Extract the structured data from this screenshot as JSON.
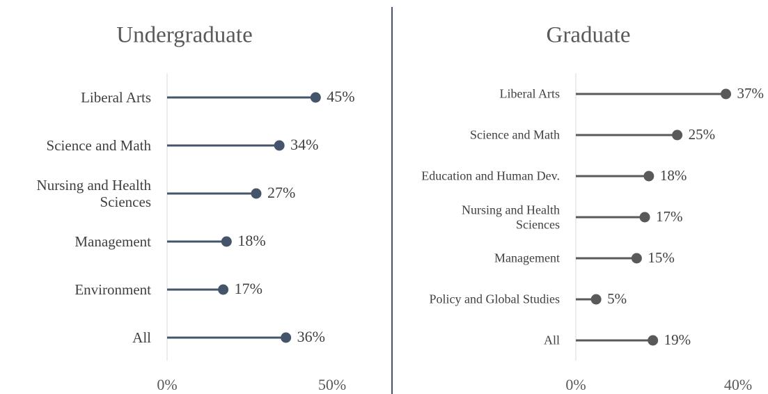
{
  "chart_data": [
    {
      "type": "lollipop",
      "title": "Undergraduate",
      "categories": [
        "Liberal Arts",
        "Science and Math",
        "Nursing and Health Sciences",
        "Management",
        "Environment",
        "All"
      ],
      "values": [
        45,
        34,
        27,
        18,
        17,
        36
      ],
      "value_labels": [
        "45%",
        "34%",
        "27%",
        "18%",
        "17%",
        "36%"
      ],
      "color": "#44546a",
      "xlim": [
        0,
        50
      ],
      "xticks": [
        {
          "value": 0,
          "label": "0%"
        },
        {
          "value": 50,
          "label": "50%"
        }
      ]
    },
    {
      "type": "lollipop",
      "title": "Graduate",
      "categories": [
        "Liberal Arts",
        "Science and Math",
        "Education and Human Dev.",
        "Nursing and Health Sciences",
        "Management",
        "Policy and Global Studies",
        "All"
      ],
      "values": [
        37,
        25,
        18,
        17,
        15,
        5,
        19
      ],
      "value_labels": [
        "37%",
        "25%",
        "18%",
        "17%",
        "15%",
        "5%",
        "19%"
      ],
      "color": "#595959",
      "xlim": [
        0,
        40
      ],
      "xticks": [
        {
          "value": 0,
          "label": "0%"
        },
        {
          "value": 40,
          "label": "40%"
        }
      ]
    }
  ]
}
